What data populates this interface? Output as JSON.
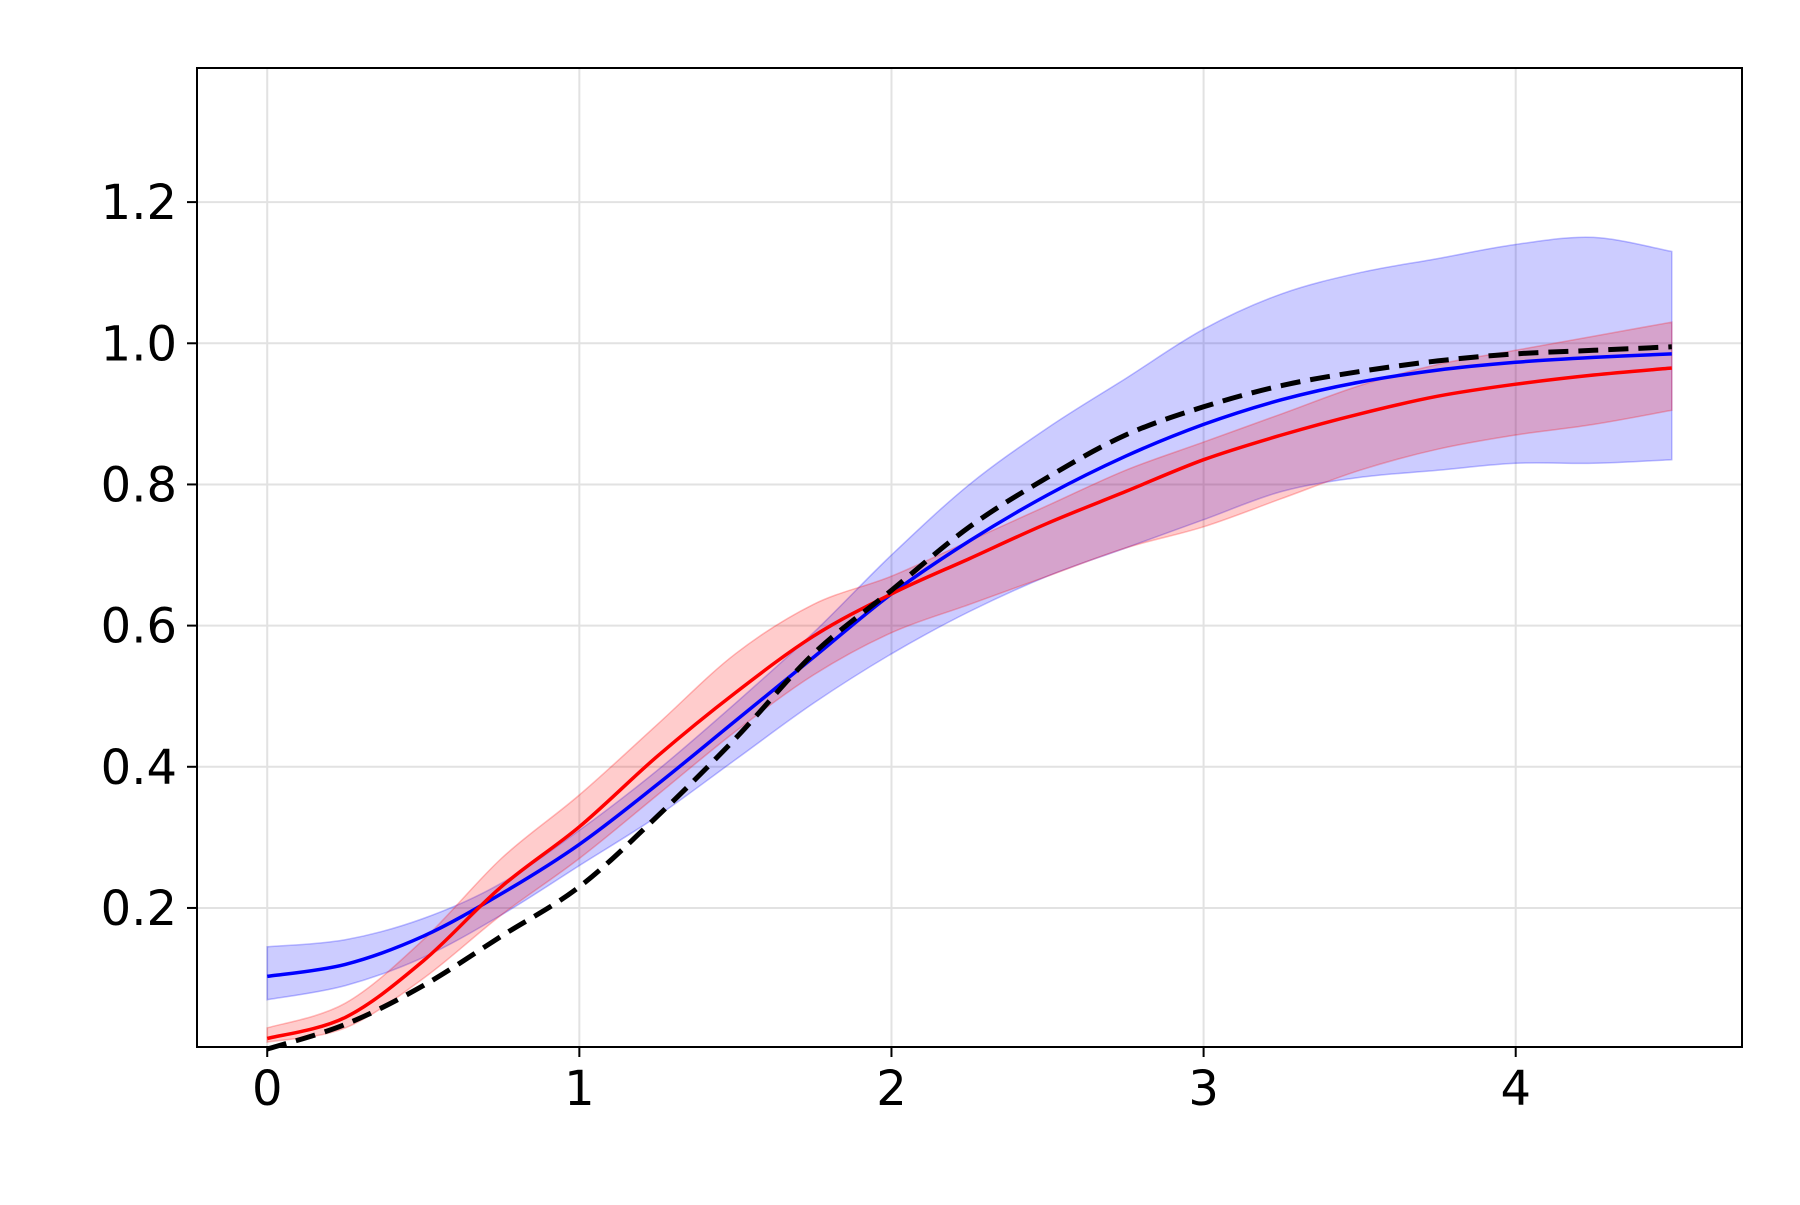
{
  "chart_data": {
    "type": "line",
    "title": "",
    "xlabel": "",
    "ylabel": "",
    "xlim": [
      -0.225,
      4.725
    ],
    "ylim": [
      0.003,
      1.39
    ],
    "grid": true,
    "legend": "none",
    "x_ticks": [
      {
        "value": 0,
        "label": "0"
      },
      {
        "value": 1,
        "label": "1"
      },
      {
        "value": 2,
        "label": "2"
      },
      {
        "value": 3,
        "label": "3"
      },
      {
        "value": 4,
        "label": "4"
      }
    ],
    "y_ticks": [
      {
        "value": 0.2,
        "label": "0.2"
      },
      {
        "value": 0.4,
        "label": "0.4"
      },
      {
        "value": 0.6,
        "label": "0.6"
      },
      {
        "value": 0.8,
        "label": "0.8"
      },
      {
        "value": 1.0,
        "label": "1.0"
      },
      {
        "value": 1.2,
        "label": "1.2"
      }
    ],
    "x": [
      0,
      0.25,
      0.5,
      0.75,
      1.0,
      1.25,
      1.5,
      1.75,
      2.0,
      2.25,
      2.5,
      2.75,
      3.0,
      3.25,
      3.5,
      3.75,
      4.0,
      4.25,
      4.5
    ],
    "bands": [
      {
        "color": "#0000ff",
        "opacity": 0.2,
        "lower": [
          0.07,
          0.09,
          0.13,
          0.19,
          0.26,
          0.33,
          0.41,
          0.49,
          0.56,
          0.62,
          0.67,
          0.71,
          0.75,
          0.79,
          0.81,
          0.82,
          0.83,
          0.83,
          0.835
        ],
        "upper": [
          0.145,
          0.155,
          0.185,
          0.235,
          0.31,
          0.395,
          0.49,
          0.59,
          0.7,
          0.8,
          0.88,
          0.95,
          1.02,
          1.07,
          1.1,
          1.12,
          1.14,
          1.15,
          1.13
        ]
      },
      {
        "color": "#ff0000",
        "opacity": 0.2,
        "lower": [
          0.01,
          0.03,
          0.1,
          0.19,
          0.27,
          0.36,
          0.45,
          0.53,
          0.59,
          0.63,
          0.67,
          0.71,
          0.74,
          0.78,
          0.82,
          0.85,
          0.87,
          0.885,
          0.905
        ],
        "upper": [
          0.03,
          0.065,
          0.155,
          0.27,
          0.36,
          0.46,
          0.56,
          0.63,
          0.67,
          0.72,
          0.77,
          0.82,
          0.86,
          0.9,
          0.94,
          0.97,
          0.99,
          1.01,
          1.03
        ]
      }
    ],
    "series": [
      {
        "color": "#0000ff",
        "style": "solid",
        "values": [
          0.103,
          0.12,
          0.16,
          0.22,
          0.29,
          0.375,
          0.465,
          0.555,
          0.645,
          0.72,
          0.785,
          0.84,
          0.885,
          0.92,
          0.945,
          0.962,
          0.973,
          0.98,
          0.985
        ]
      },
      {
        "color": "#ff0000",
        "style": "solid",
        "values": [
          0.015,
          0.045,
          0.125,
          0.23,
          0.315,
          0.415,
          0.505,
          0.585,
          0.645,
          0.695,
          0.745,
          0.79,
          0.835,
          0.87,
          0.9,
          0.925,
          0.942,
          0.955,
          0.965
        ]
      },
      {
        "color": "#000000",
        "style": "dashed",
        "values": [
          0.0,
          0.035,
          0.09,
          0.16,
          0.23,
          0.33,
          0.44,
          0.56,
          0.65,
          0.74,
          0.81,
          0.87,
          0.91,
          0.94,
          0.96,
          0.975,
          0.985,
          0.99,
          0.995
        ]
      }
    ]
  }
}
